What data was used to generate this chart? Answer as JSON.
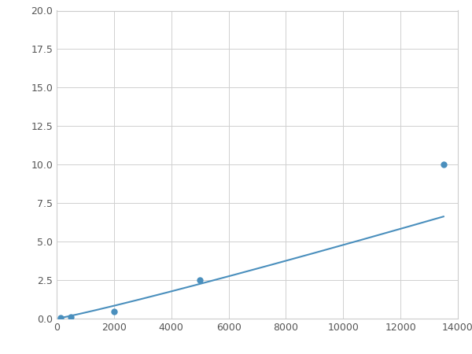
{
  "x": [
    125,
    500,
    2000,
    5000,
    13500
  ],
  "y": [
    0.07,
    0.12,
    0.45,
    2.5,
    10.0
  ],
  "line_color": "#4a8fbd",
  "marker_color": "#4a8fbd",
  "marker_size": 6,
  "xlim": [
    0,
    14000
  ],
  "ylim": [
    0,
    20.0
  ],
  "xticks": [
    0,
    2000,
    4000,
    6000,
    8000,
    10000,
    12000,
    14000
  ],
  "yticks": [
    0.0,
    2.5,
    5.0,
    7.5,
    10.0,
    12.5,
    15.0,
    17.5,
    20.0
  ],
  "grid": true,
  "background_color": "#ffffff",
  "figsize": [
    6.0,
    4.5
  ],
  "dpi": 100
}
